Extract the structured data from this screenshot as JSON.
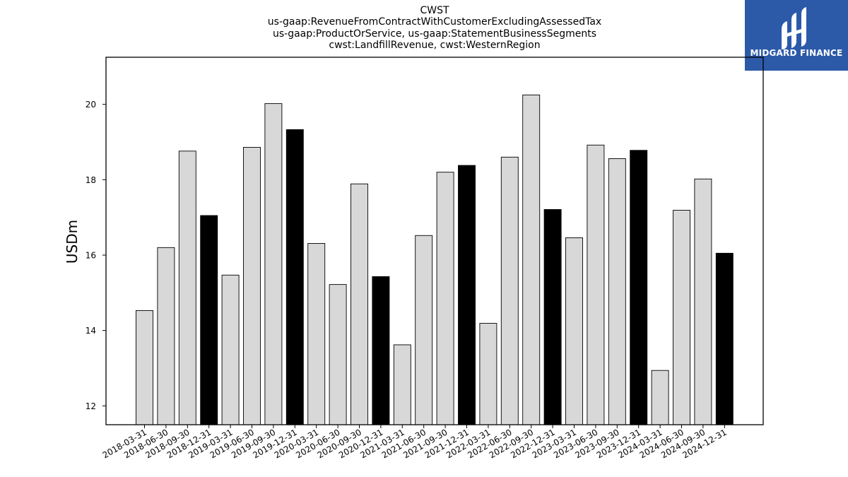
{
  "chart_data": {
    "type": "bar",
    "title": "CWST",
    "subtitle_lines": [
      "us-gaap:RevenueFromContractWithCustomerExcludingAssessedTax",
      "us-gaap:ProductOrService, us-gaap:StatementBusinessSegments",
      "cwst:LandfillRevenue, cwst:WesternRegion"
    ],
    "xlabel": "",
    "ylabel": "USDm",
    "ylim": [
      11.5,
      21.25
    ],
    "yticks": [
      12,
      14,
      16,
      18,
      20
    ],
    "grid": false,
    "categories": [
      "2018-03-31",
      "2018-06-30",
      "2018-09-30",
      "2018-12-31",
      "2019-03-31",
      "2019-06-30",
      "2019-09-30",
      "2019-12-31",
      "2020-03-31",
      "2020-06-30",
      "2020-09-30",
      "2020-12-31",
      "2021-03-31",
      "2021-06-30",
      "2021-09-30",
      "2021-12-31",
      "2022-03-31",
      "2022-06-30",
      "2022-09-30",
      "2022-12-31",
      "2023-03-31",
      "2023-06-30",
      "2023-09-30",
      "2023-12-31",
      "2024-03-31",
      "2024-06-30",
      "2024-09-30",
      "2024-12-31"
    ],
    "values": [
      14.53,
      16.2,
      18.76,
      17.05,
      15.47,
      18.86,
      20.02,
      19.33,
      16.31,
      15.22,
      17.89,
      15.43,
      13.62,
      16.52,
      18.2,
      18.38,
      14.19,
      18.6,
      20.25,
      17.21,
      16.46,
      18.92,
      18.56,
      18.78,
      12.94,
      17.19,
      18.02,
      16.05
    ],
    "colors": {
      "quarter": "#d8d8d8",
      "year_end": "#000000",
      "edge": "#000000"
    }
  },
  "logo": {
    "text": "MIDGARD FINANCE",
    "background": "#2d5aa8"
  }
}
